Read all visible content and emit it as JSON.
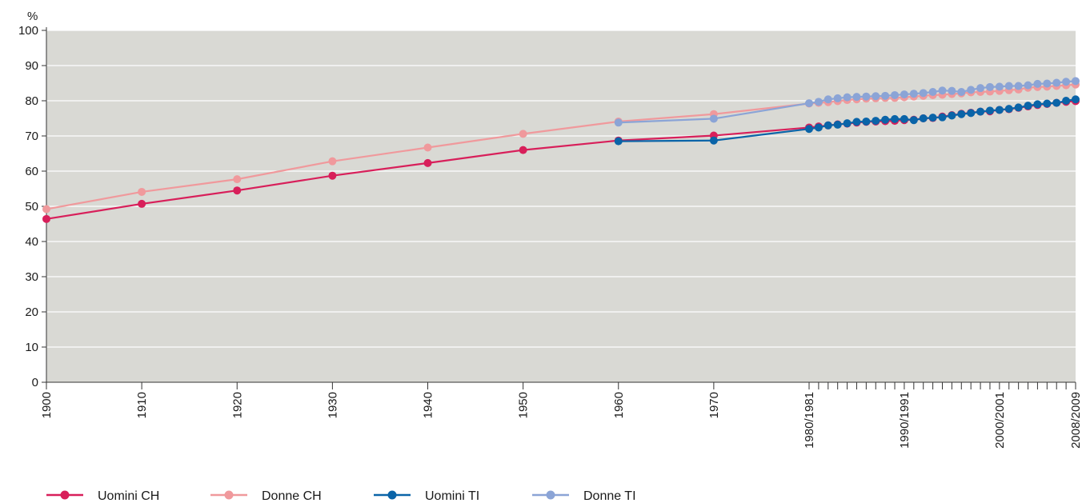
{
  "chart_data": {
    "type": "line",
    "ylabel": "%",
    "ylim": [
      0,
      100
    ],
    "yticks": [
      0,
      10,
      20,
      30,
      40,
      50,
      60,
      70,
      80,
      90,
      100
    ],
    "grid": true,
    "legend_position": "bottom",
    "x_tick_labels": [
      "1900",
      "1910",
      "1920",
      "1930",
      "1940",
      "1950",
      "1960",
      "1970",
      "1980/1981",
      "1990/1991",
      "2000/2001",
      "2008/2009"
    ],
    "x_minor_ticks": "yearly from 1981 to 2009",
    "colors": {
      "background": "#d9d9d4",
      "grid": "#ffffff"
    },
    "series": [
      {
        "name": "Uomini CH",
        "color": "#d81f5a",
        "points": [
          [
            1900,
            46.4
          ],
          [
            1910,
            50.7
          ],
          [
            1920,
            54.5
          ],
          [
            1930,
            58.7
          ],
          [
            1940,
            62.3
          ],
          [
            1950,
            66.0
          ],
          [
            1960,
            68.7
          ],
          [
            1970,
            70.1
          ],
          [
            1981,
            72.4
          ],
          [
            1982,
            72.7
          ],
          [
            1983,
            73.0
          ],
          [
            1984,
            73.3
          ],
          [
            1985,
            73.5
          ],
          [
            1986,
            73.8
          ],
          [
            1987,
            74.0
          ],
          [
            1988,
            74.1
          ],
          [
            1989,
            74.2
          ],
          [
            1990,
            74.3
          ],
          [
            1991,
            74.5
          ],
          [
            1992,
            74.6
          ],
          [
            1993,
            75.0
          ],
          [
            1994,
            75.1
          ],
          [
            1995,
            75.5
          ],
          [
            1996,
            75.9
          ],
          [
            1997,
            76.3
          ],
          [
            1998,
            76.6
          ],
          [
            1999,
            76.9
          ],
          [
            2000,
            77.0
          ],
          [
            2001,
            77.4
          ],
          [
            2002,
            77.6
          ],
          [
            2003,
            78.0
          ],
          [
            2004,
            78.4
          ],
          [
            2005,
            78.8
          ],
          [
            2006,
            79.1
          ],
          [
            2007,
            79.4
          ],
          [
            2008,
            79.7
          ],
          [
            2009,
            79.9
          ]
        ]
      },
      {
        "name": "Donne CH",
        "color": "#f0999c",
        "points": [
          [
            1900,
            49.2
          ],
          [
            1910,
            54.1
          ],
          [
            1920,
            57.7
          ],
          [
            1930,
            62.8
          ],
          [
            1940,
            66.7
          ],
          [
            1950,
            70.6
          ],
          [
            1960,
            74.1
          ],
          [
            1970,
            76.2
          ],
          [
            1981,
            79.2
          ],
          [
            1982,
            79.4
          ],
          [
            1983,
            79.6
          ],
          [
            1984,
            79.9
          ],
          [
            1985,
            80.2
          ],
          [
            1986,
            80.4
          ],
          [
            1987,
            80.6
          ],
          [
            1988,
            80.7
          ],
          [
            1989,
            80.8
          ],
          [
            1990,
            80.8
          ],
          [
            1991,
            81.0
          ],
          [
            1992,
            81.2
          ],
          [
            1993,
            81.4
          ],
          [
            1994,
            81.6
          ],
          [
            1995,
            81.7
          ],
          [
            1996,
            81.9
          ],
          [
            1997,
            82.1
          ],
          [
            1998,
            82.4
          ],
          [
            1999,
            82.5
          ],
          [
            2000,
            82.6
          ],
          [
            2001,
            82.8
          ],
          [
            2002,
            83.0
          ],
          [
            2003,
            83.2
          ],
          [
            2004,
            83.7
          ],
          [
            2005,
            83.9
          ],
          [
            2006,
            84.0
          ],
          [
            2007,
            84.2
          ],
          [
            2008,
            84.4
          ],
          [
            2009,
            84.6
          ]
        ]
      },
      {
        "name": "Uomini TI",
        "color": "#0a64a8",
        "points": [
          [
            1960,
            68.5
          ],
          [
            1970,
            68.7
          ],
          [
            1981,
            72.0
          ],
          [
            1982,
            72.4
          ],
          [
            1983,
            73.0
          ],
          [
            1984,
            73.2
          ],
          [
            1985,
            73.6
          ],
          [
            1986,
            74.0
          ],
          [
            1987,
            74.1
          ],
          [
            1988,
            74.3
          ],
          [
            1989,
            74.6
          ],
          [
            1990,
            74.8
          ],
          [
            1991,
            74.8
          ],
          [
            1992,
            74.5
          ],
          [
            1993,
            75.0
          ],
          [
            1994,
            75.2
          ],
          [
            1995,
            75.3
          ],
          [
            1996,
            75.8
          ],
          [
            1997,
            76.2
          ],
          [
            1998,
            76.5
          ],
          [
            1999,
            76.9
          ],
          [
            2000,
            77.2
          ],
          [
            2001,
            77.4
          ],
          [
            2002,
            77.7
          ],
          [
            2003,
            78.1
          ],
          [
            2004,
            78.6
          ],
          [
            2005,
            79.0
          ],
          [
            2006,
            79.2
          ],
          [
            2007,
            79.4
          ],
          [
            2008,
            80.0
          ],
          [
            2009,
            80.4
          ]
        ]
      },
      {
        "name": "Donne TI",
        "color": "#8ba4d6",
        "points": [
          [
            1960,
            73.8
          ],
          [
            1970,
            74.9
          ],
          [
            1981,
            79.3
          ],
          [
            1982,
            79.7
          ],
          [
            1983,
            80.4
          ],
          [
            1984,
            80.7
          ],
          [
            1985,
            81.0
          ],
          [
            1986,
            81.1
          ],
          [
            1987,
            81.2
          ],
          [
            1988,
            81.3
          ],
          [
            1989,
            81.4
          ],
          [
            1990,
            81.6
          ],
          [
            1991,
            81.8
          ],
          [
            1992,
            82.0
          ],
          [
            1993,
            82.2
          ],
          [
            1994,
            82.5
          ],
          [
            1995,
            82.9
          ],
          [
            1996,
            82.8
          ],
          [
            1997,
            82.5
          ],
          [
            1998,
            83.1
          ],
          [
            1999,
            83.6
          ],
          [
            2000,
            83.9
          ],
          [
            2001,
            84.0
          ],
          [
            2002,
            84.2
          ],
          [
            2003,
            84.2
          ],
          [
            2004,
            84.4
          ],
          [
            2005,
            84.8
          ],
          [
            2006,
            84.9
          ],
          [
            2007,
            85.1
          ],
          [
            2008,
            85.4
          ],
          [
            2009,
            85.6
          ]
        ]
      }
    ]
  }
}
